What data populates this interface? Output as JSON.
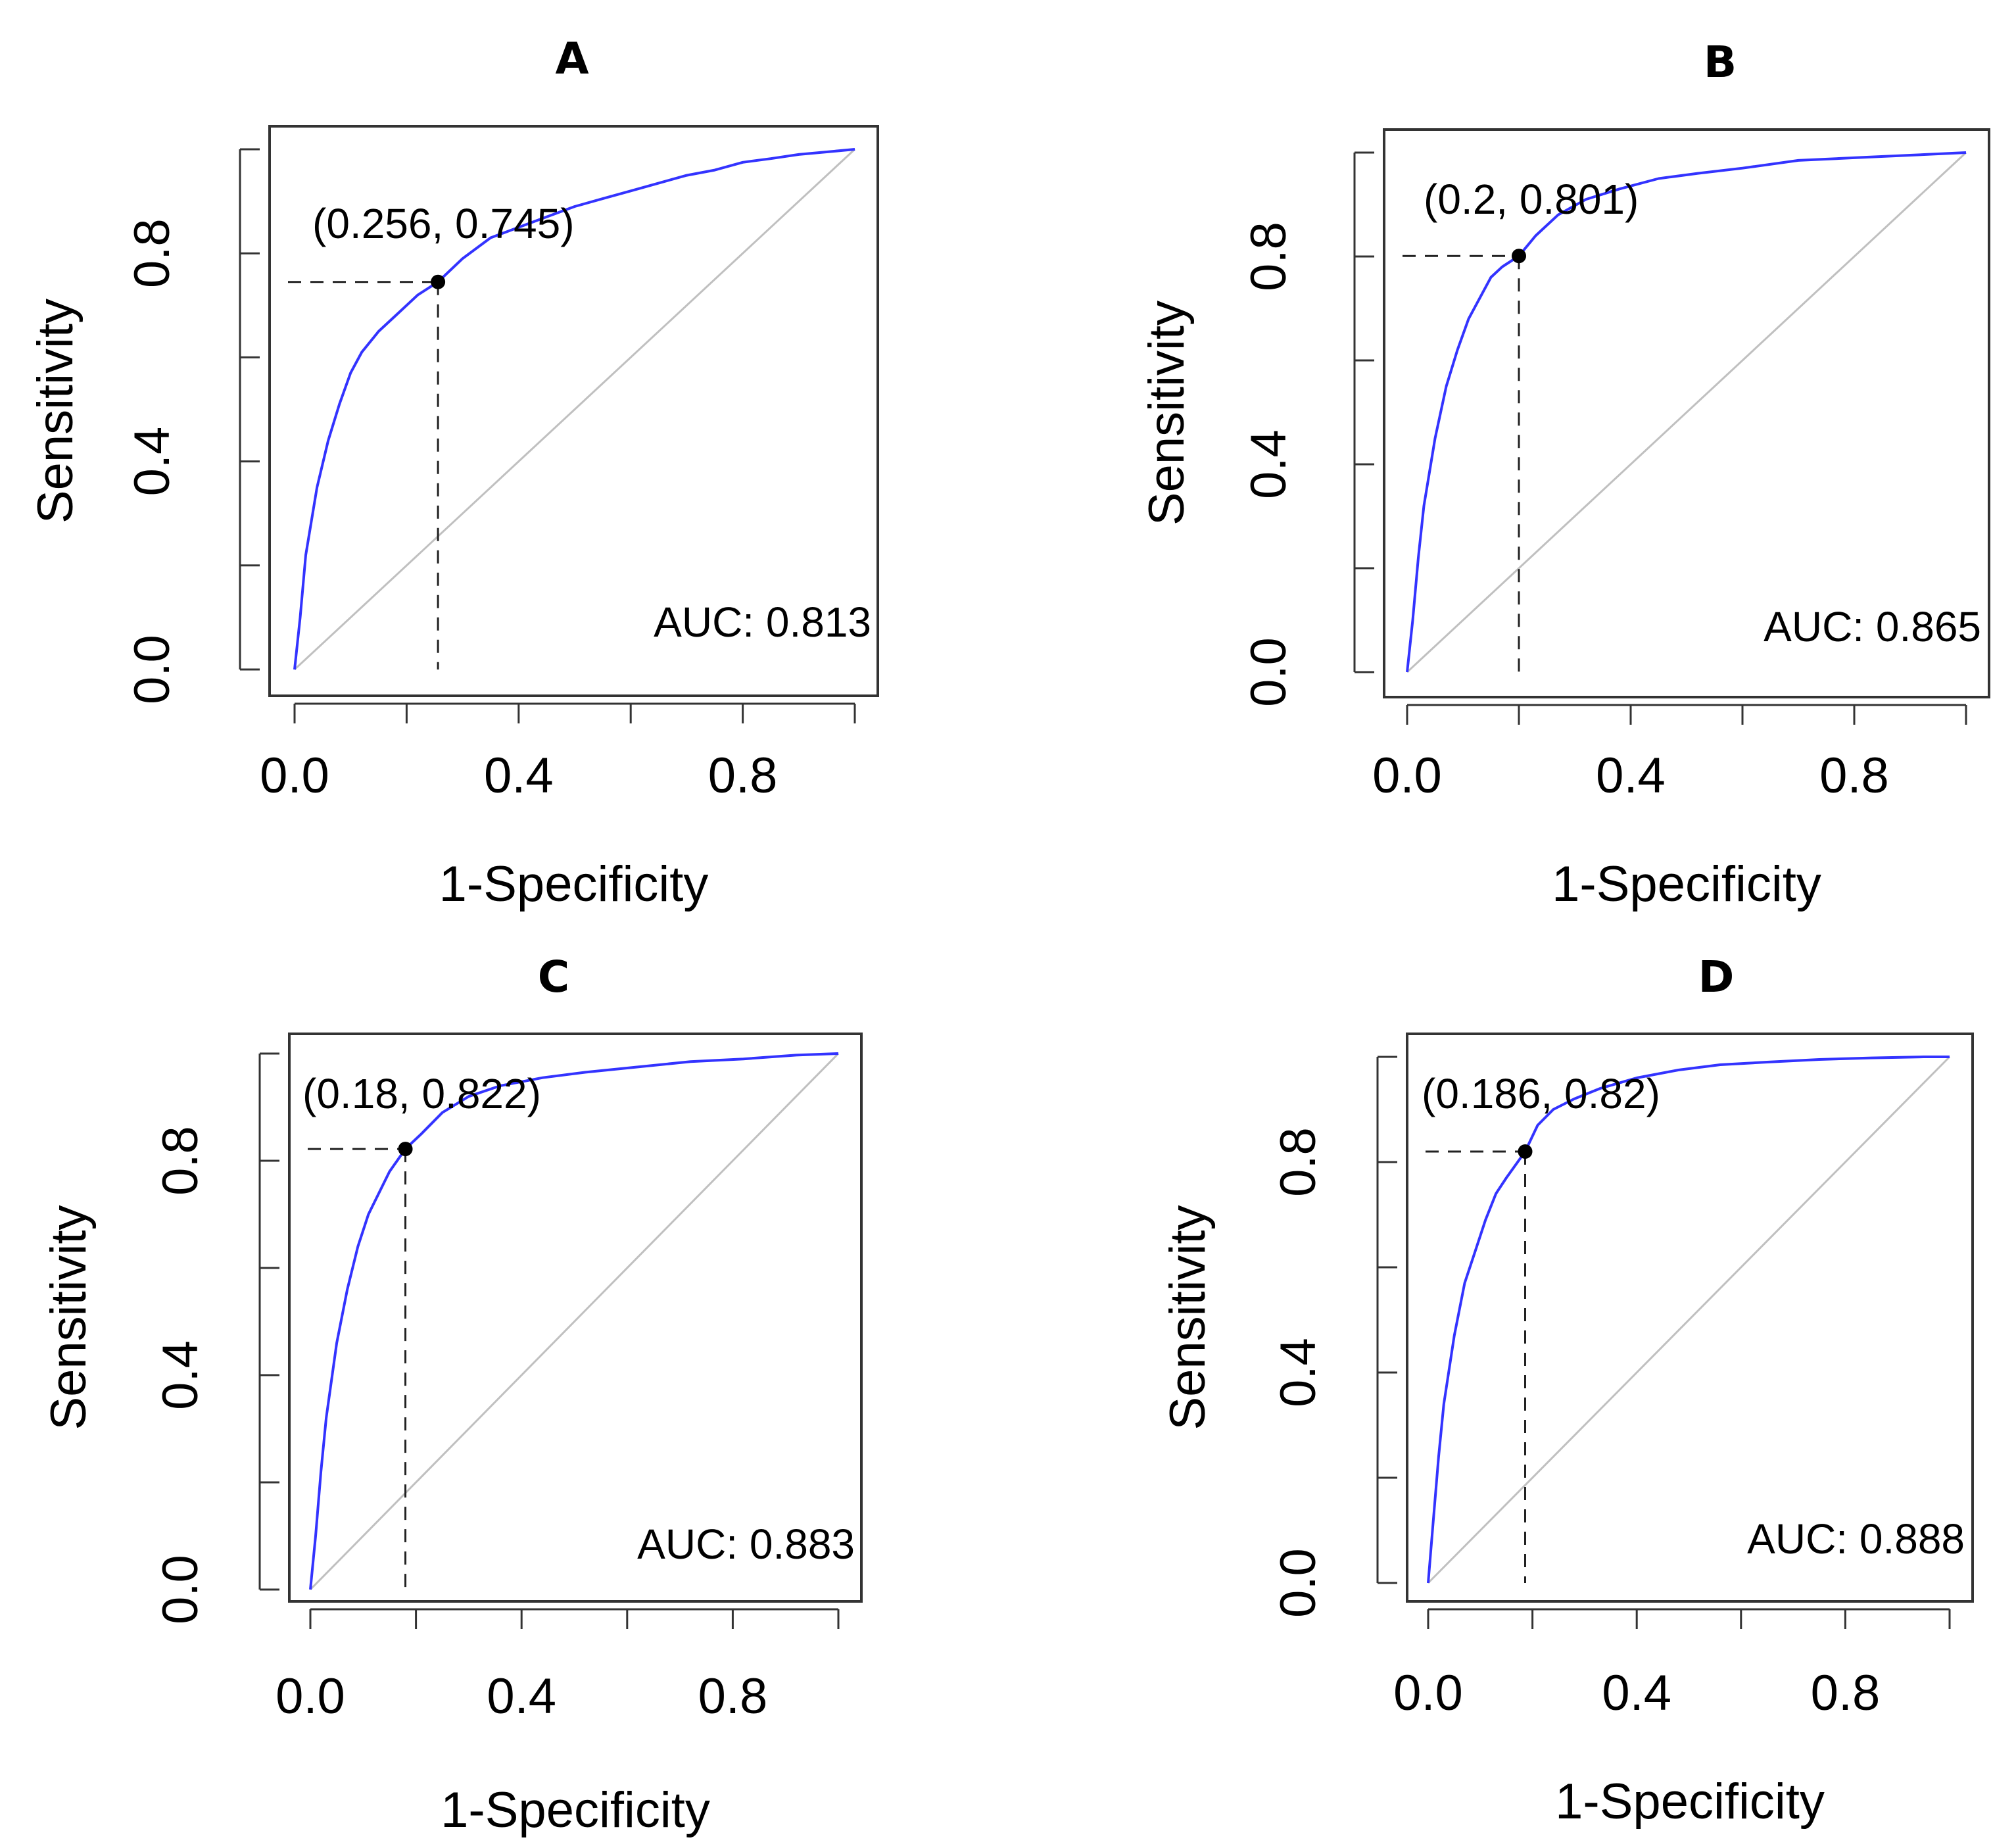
{
  "chart_data": [
    {
      "type": "line",
      "title": "A",
      "xlabel": "1-Specificity",
      "ylabel": "Sensitivity",
      "xlim": [
        0,
        1
      ],
      "ylim": [
        0,
        1
      ],
      "x_ticks": [
        "0.0",
        "0.4",
        "0.8"
      ],
      "y_ticks": [
        "0.0",
        "0.4",
        "0.8"
      ],
      "series": [
        {
          "name": "ROC",
          "color": "#3333ff",
          "x": [
            0,
            0.01,
            0.02,
            0.04,
            0.06,
            0.08,
            0.1,
            0.12,
            0.15,
            0.18,
            0.2,
            0.22,
            0.256,
            0.3,
            0.35,
            0.4,
            0.45,
            0.5,
            0.55,
            0.6,
            0.65,
            0.7,
            0.75,
            0.8,
            0.85,
            0.9,
            0.95,
            1.0
          ],
          "y": [
            0,
            0.1,
            0.22,
            0.35,
            0.44,
            0.51,
            0.57,
            0.61,
            0.65,
            0.68,
            0.7,
            0.72,
            0.745,
            0.79,
            0.83,
            0.85,
            0.87,
            0.89,
            0.905,
            0.92,
            0.935,
            0.95,
            0.96,
            0.975,
            0.982,
            0.99,
            0.995,
            1.0
          ]
        },
        {
          "name": "Reference",
          "color": "#c0c0c0",
          "x": [
            0,
            1
          ],
          "y": [
            0,
            1
          ]
        }
      ],
      "cutoff": {
        "x": 0.256,
        "y": 0.745,
        "label": "(0.256, 0.745)"
      },
      "auc_label": "AUC: 0.813"
    },
    {
      "type": "line",
      "title": "B",
      "xlabel": "1-Specificity",
      "ylabel": "Sensitivity",
      "xlim": [
        0,
        1
      ],
      "ylim": [
        0,
        1
      ],
      "x_ticks": [
        "0.0",
        "0.4",
        "0.8"
      ],
      "y_ticks": [
        "0.0",
        "0.4",
        "0.8"
      ],
      "series": [
        {
          "name": "ROC",
          "color": "#3333ff",
          "x": [
            0,
            0.01,
            0.02,
            0.03,
            0.05,
            0.07,
            0.09,
            0.11,
            0.13,
            0.15,
            0.17,
            0.2,
            0.23,
            0.27,
            0.32,
            0.38,
            0.45,
            0.52,
            0.6,
            0.7,
            0.8,
            0.9,
            1.0
          ],
          "y": [
            0,
            0.1,
            0.22,
            0.32,
            0.45,
            0.55,
            0.62,
            0.68,
            0.72,
            0.76,
            0.78,
            0.801,
            0.84,
            0.88,
            0.91,
            0.93,
            0.95,
            0.96,
            0.97,
            0.985,
            0.99,
            0.995,
            1.0
          ]
        },
        {
          "name": "Reference",
          "color": "#c0c0c0",
          "x": [
            0,
            1
          ],
          "y": [
            0,
            1
          ]
        }
      ],
      "cutoff": {
        "x": 0.2,
        "y": 0.801,
        "label": "(0.2, 0.801)"
      },
      "auc_label": "AUC: 0.865"
    },
    {
      "type": "line",
      "title": "C",
      "xlabel": "1-Specificity",
      "ylabel": "Sensitivity",
      "xlim": [
        0,
        1
      ],
      "ylim": [
        0,
        1
      ],
      "x_ticks": [
        "0.0",
        "0.4",
        "0.8"
      ],
      "y_ticks": [
        "0.0",
        "0.4",
        "0.8"
      ],
      "series": [
        {
          "name": "ROC",
          "color": "#3333ff",
          "x": [
            0,
            0.01,
            0.02,
            0.03,
            0.05,
            0.07,
            0.09,
            0.11,
            0.13,
            0.15,
            0.18,
            0.21,
            0.25,
            0.3,
            0.36,
            0.44,
            0.52,
            0.62,
            0.72,
            0.82,
            0.92,
            1.0
          ],
          "y": [
            0,
            0.1,
            0.22,
            0.32,
            0.46,
            0.56,
            0.64,
            0.7,
            0.74,
            0.78,
            0.822,
            0.85,
            0.89,
            0.92,
            0.94,
            0.955,
            0.965,
            0.975,
            0.985,
            0.99,
            0.997,
            1.0
          ]
        },
        {
          "name": "Reference",
          "color": "#c0c0c0",
          "x": [
            0,
            1
          ],
          "y": [
            0,
            1
          ]
        }
      ],
      "cutoff": {
        "x": 0.18,
        "y": 0.822,
        "label": "(0.18, 0.822)"
      },
      "auc_label": "AUC: 0.883"
    },
    {
      "type": "line",
      "title": "D",
      "xlabel": "1-Specificity",
      "ylabel": "Sensitivity",
      "xlim": [
        0,
        1
      ],
      "ylim": [
        0,
        1
      ],
      "x_ticks": [
        "0.0",
        "0.4",
        "0.8"
      ],
      "y_ticks": [
        "0.0",
        "0.4",
        "0.8"
      ],
      "series": [
        {
          "name": "ROC",
          "color": "#3333ff",
          "x": [
            0,
            0.01,
            0.02,
            0.03,
            0.05,
            0.07,
            0.09,
            0.11,
            0.13,
            0.15,
            0.186,
            0.21,
            0.24,
            0.28,
            0.33,
            0.4,
            0.48,
            0.56,
            0.65,
            0.75,
            0.85,
            0.95,
            1.0
          ],
          "y": [
            0,
            0.12,
            0.24,
            0.34,
            0.47,
            0.57,
            0.63,
            0.69,
            0.74,
            0.77,
            0.82,
            0.87,
            0.9,
            0.92,
            0.94,
            0.96,
            0.975,
            0.985,
            0.99,
            0.995,
            0.998,
            1.0,
            1.0
          ]
        },
        {
          "name": "Reference",
          "color": "#c0c0c0",
          "x": [
            0,
            1
          ],
          "y": [
            0,
            1
          ]
        }
      ],
      "cutoff": {
        "x": 0.186,
        "y": 0.82,
        "label": "(0.186, 0.82)"
      },
      "auc_label": "AUC: 0.888"
    }
  ]
}
